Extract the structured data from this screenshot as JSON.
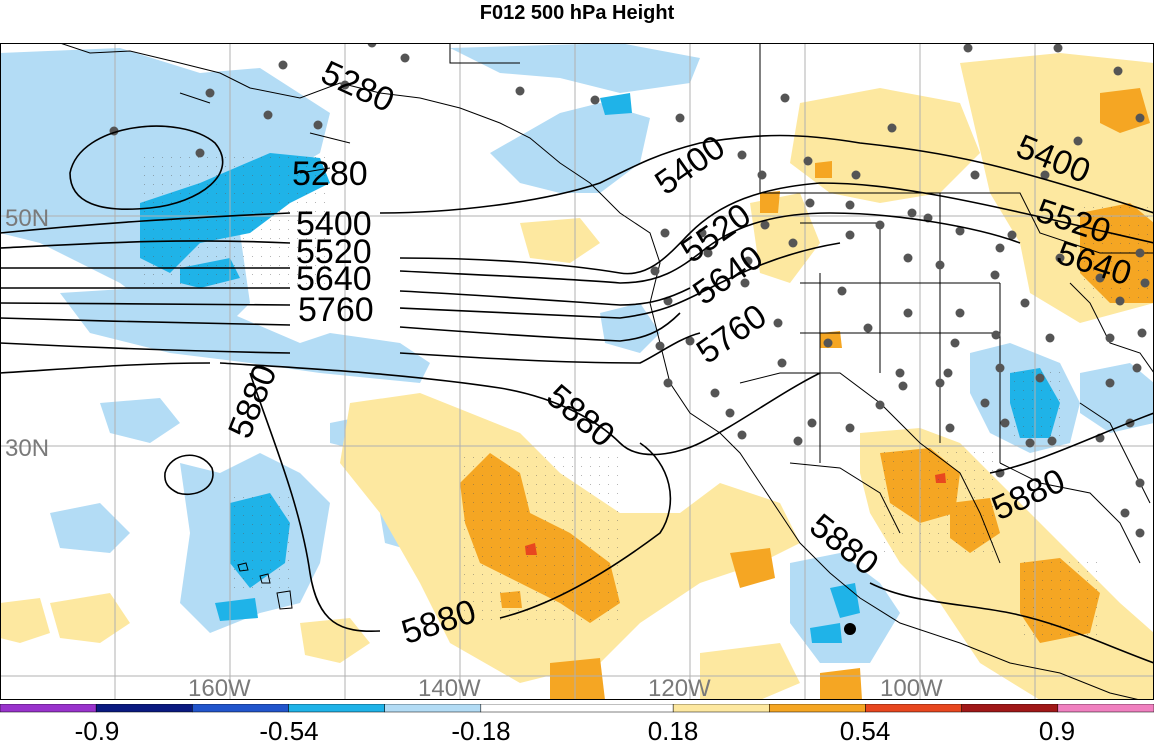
{
  "title": "F012 500 hPa Height",
  "colors": {
    "light_blue": "#b3dcf5",
    "blue": "#1fb3e8",
    "yellow": "#fde8a0",
    "orange": "#f5a623",
    "red": "#e8471f",
    "land_line": "#000000",
    "grid": "#b0b0b0",
    "station": "#555555"
  },
  "lat_labels": [
    "50N",
    "30N"
  ],
  "lon_labels": [
    "160W",
    "140W",
    "120W",
    "100W"
  ],
  "contour_labels": [
    "5280",
    "5280",
    "5400",
    "5520",
    "5640",
    "5760",
    "5880",
    "5880",
    "5880",
    "5880",
    "5400",
    "5520",
    "5640",
    "5520",
    "5640",
    "5760",
    "5400",
    "5880"
  ],
  "colorbar": {
    "ticks": [
      "-0.9",
      "-0.54",
      "-0.18",
      "0.18",
      "0.54",
      "0.9"
    ],
    "swatches": [
      "#9933cc",
      "#0a1a80",
      "#2255cc",
      "#1fb3e8",
      "#b3dcf5",
      "#ffffff",
      "#fde8a0",
      "#f5a623",
      "#e8471f",
      "#a01818",
      "#f080c0"
    ]
  }
}
